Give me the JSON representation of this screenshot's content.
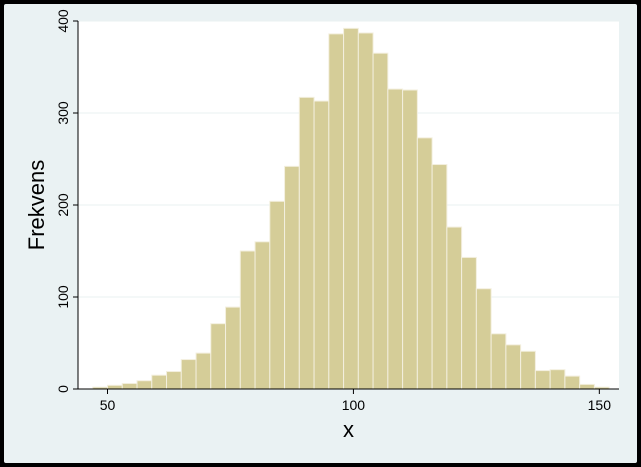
{
  "chart_data": {
    "type": "bar",
    "xlabel": "x",
    "ylabel": "Frekvens",
    "xlim": [
      44,
      154
    ],
    "ylim": [
      0,
      400
    ],
    "x_ticks": [
      "50",
      "100",
      "150"
    ],
    "y_ticks": [
      "0",
      "100",
      "200",
      "300",
      "400"
    ],
    "grid": true,
    "bin_width": 3,
    "bins": [
      {
        "x0": 47,
        "x1": 50,
        "value": 2
      },
      {
        "x0": 50,
        "x1": 53,
        "value": 4
      },
      {
        "x0": 53,
        "x1": 56,
        "value": 6
      },
      {
        "x0": 56,
        "x1": 59,
        "value": 9
      },
      {
        "x0": 59,
        "x1": 62,
        "value": 15
      },
      {
        "x0": 62,
        "x1": 65,
        "value": 19
      },
      {
        "x0": 65,
        "x1": 68,
        "value": 32
      },
      {
        "x0": 68,
        "x1": 71,
        "value": 39
      },
      {
        "x0": 71,
        "x1": 74,
        "value": 71
      },
      {
        "x0": 74,
        "x1": 77,
        "value": 89
      },
      {
        "x0": 77,
        "x1": 80,
        "value": 150
      },
      {
        "x0": 80,
        "x1": 83,
        "value": 160
      },
      {
        "x0": 83,
        "x1": 86,
        "value": 204
      },
      {
        "x0": 86,
        "x1": 89,
        "value": 242
      },
      {
        "x0": 89,
        "x1": 92,
        "value": 317
      },
      {
        "x0": 92,
        "x1": 95,
        "value": 313
      },
      {
        "x0": 95,
        "x1": 98,
        "value": 386
      },
      {
        "x0": 98,
        "x1": 101,
        "value": 392
      },
      {
        "x0": 101,
        "x1": 104,
        "value": 387
      },
      {
        "x0": 104,
        "x1": 107,
        "value": 365
      },
      {
        "x0": 107,
        "x1": 110,
        "value": 326
      },
      {
        "x0": 110,
        "x1": 113,
        "value": 325
      },
      {
        "x0": 113,
        "x1": 116,
        "value": 273
      },
      {
        "x0": 116,
        "x1": 119,
        "value": 244
      },
      {
        "x0": 119,
        "x1": 122,
        "value": 176
      },
      {
        "x0": 122,
        "x1": 125,
        "value": 143
      },
      {
        "x0": 125,
        "x1": 128,
        "value": 109
      },
      {
        "x0": 128,
        "x1": 131,
        "value": 60
      },
      {
        "x0": 131,
        "x1": 134,
        "value": 48
      },
      {
        "x0": 134,
        "x1": 137,
        "value": 41
      },
      {
        "x0": 137,
        "x1": 140,
        "value": 20
      },
      {
        "x0": 140,
        "x1": 143,
        "value": 21
      },
      {
        "x0": 143,
        "x1": 146,
        "value": 14
      },
      {
        "x0": 146,
        "x1": 149,
        "value": 5
      },
      {
        "x0": 149,
        "x1": 152,
        "value": 2
      }
    ],
    "colors": {
      "bar_fill": "#d5cd98",
      "bar_stroke": "#f3efde",
      "plot_background": "#ffffff",
      "figure_background": "#eaf2f3",
      "grid": "#eaf0f1"
    }
  }
}
